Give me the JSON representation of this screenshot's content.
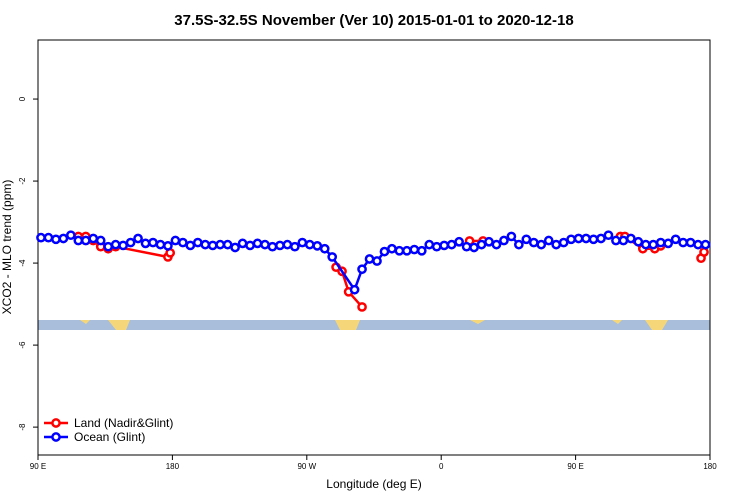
{
  "chart_data": {
    "type": "line",
    "title": "37.5S-32.5S November (Ver 10)   2015-01-01 to 2020-12-18",
    "x_label": "Longitude (deg E)",
    "y_label": "XCO2 - MLO trend (ppm)",
    "xlim": [
      90,
      540
    ],
    "xticks": [
      {
        "value": 90,
        "label": "90 E"
      },
      180,
      {
        "value": 270,
        "label": "90 W"
      },
      {
        "value": 360,
        "label": "0"
      },
      {
        "value": 450,
        "label": "90 E"
      },
      {
        "value": 540,
        "label": "180"
      }
    ],
    "ylim": [
      -8.68,
      1.44
    ],
    "yticks": [
      0,
      -2,
      -4,
      -6,
      -8
    ],
    "legend": "bottom-left",
    "series": [
      {
        "name": "Land (Nadir&Glint)",
        "color": "#ff0000",
        "x": [
          117,
          122,
          127,
          132,
          137,
          142,
          177,
          178.5,
          200,
          289.6,
          293.6,
          298,
          307,
          330,
          379,
          388,
          420,
          480,
          483,
          495,
          503,
          507,
          520,
          534,
          536
        ],
        "values": [
          -3.35,
          -3.35,
          -3.45,
          -3.6,
          -3.65,
          -3.6,
          -3.85,
          -3.75,
          null,
          -4.1,
          -4.2,
          -4.7,
          -5.07,
          null,
          -3.46,
          -3.46,
          null,
          -3.35,
          -3.35,
          -3.65,
          -3.65,
          -3.58,
          null,
          -3.88,
          -3.73
        ]
      },
      {
        "name": "Ocean (Glint)",
        "color": "#0000ff",
        "x": [
          92,
          97,
          102,
          107,
          112,
          117,
          122,
          127,
          132,
          137,
          142,
          147,
          152,
          157,
          162,
          167,
          172,
          177,
          182,
          187,
          192,
          197,
          202,
          207,
          212,
          217,
          222,
          227,
          232,
          237,
          242,
          247,
          252,
          257,
          262,
          267,
          272,
          277,
          282,
          287,
          302,
          307,
          312,
          317,
          322,
          327,
          332,
          337,
          342,
          347,
          352,
          357,
          362,
          367,
          372,
          377,
          382,
          387,
          392,
          397,
          402,
          407,
          412,
          417,
          422,
          427,
          432,
          437,
          442,
          447,
          452,
          457,
          462,
          467,
          472,
          477,
          482,
          487,
          492,
          497,
          502,
          507,
          512,
          517,
          522,
          527,
          532,
          537
        ],
        "values": [
          -3.38,
          -3.38,
          -3.42,
          -3.4,
          -3.32,
          -3.45,
          -3.45,
          -3.4,
          -3.45,
          -3.6,
          -3.55,
          -3.57,
          -3.5,
          -3.4,
          -3.52,
          -3.5,
          -3.55,
          -3.58,
          -3.45,
          -3.5,
          -3.57,
          -3.5,
          -3.55,
          -3.57,
          -3.55,
          -3.55,
          -3.62,
          -3.52,
          -3.57,
          -3.52,
          -3.55,
          -3.6,
          -3.57,
          -3.55,
          -3.6,
          -3.5,
          -3.55,
          -3.58,
          -3.65,
          -3.85,
          -4.65,
          -4.15,
          -3.9,
          -3.95,
          -3.72,
          -3.65,
          -3.7,
          -3.7,
          -3.67,
          -3.7,
          -3.55,
          -3.6,
          -3.57,
          -3.55,
          -3.48,
          -3.6,
          -3.62,
          -3.55,
          -3.48,
          -3.55,
          -3.45,
          -3.35,
          -3.55,
          -3.42,
          -3.5,
          -3.55,
          -3.45,
          -3.55,
          -3.5,
          -3.42,
          -3.4,
          -3.4,
          -3.42,
          -3.4,
          -3.32,
          -3.45,
          -3.45,
          -3.4,
          -3.48,
          -3.55,
          -3.55,
          -3.5,
          -3.52,
          -3.42,
          -3.5,
          -3.5,
          -3.55,
          -3.55
        ]
      }
    ]
  }
}
